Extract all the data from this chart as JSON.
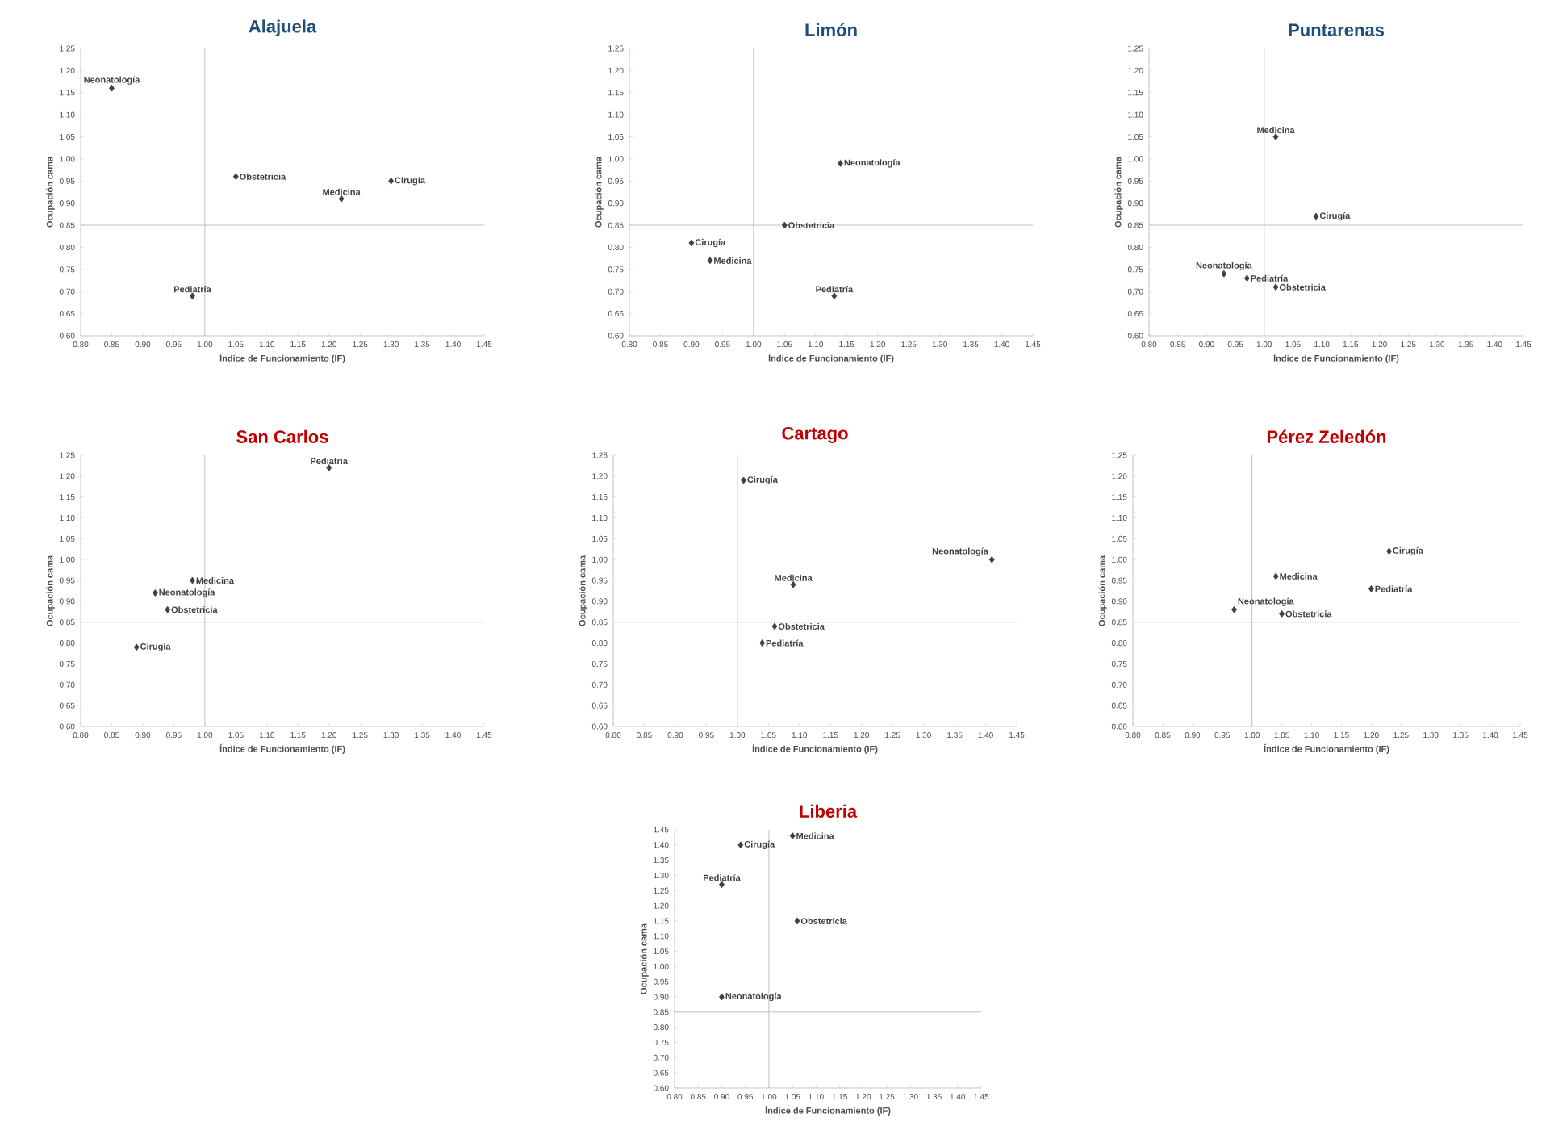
{
  "chart_data": [
    {
      "type": "scatter",
      "title": "Alajuela",
      "xlabel": "Índice de Funcionamiento (IF)",
      "ylabel": "Ocupación cama",
      "marker": "diamond",
      "xlim": [
        0.8,
        1.45
      ],
      "ylim": [
        0.6,
        1.25
      ],
      "xticks": [
        {
          "value": 0.8,
          "label": "0.80"
        },
        {
          "value": 0.85,
          "label": "0.85"
        },
        {
          "value": 0.9,
          "label": "0.90"
        },
        {
          "value": 0.95,
          "label": "0.95"
        },
        {
          "value": 1,
          "label": "1.00"
        },
        {
          "value": 1.05,
          "label": "1.05"
        },
        {
          "value": 1.1,
          "label": "1.10"
        },
        {
          "value": 1.15,
          "label": "1.15"
        },
        {
          "value": 1.2,
          "label": "1.20"
        },
        {
          "value": 1.25,
          "label": "1.25"
        },
        {
          "value": 1.3,
          "label": "1.30"
        },
        {
          "value": 1.35,
          "label": "1.35"
        },
        {
          "value": 1.4,
          "label": "1.40"
        },
        {
          "value": 1.45,
          "label": "1.45"
        }
      ],
      "yticks": [
        {
          "value": 0.6,
          "label": "0.60"
        },
        {
          "value": 0.65,
          "label": "0.65"
        },
        {
          "value": 0.7,
          "label": "0.70"
        },
        {
          "value": 0.75,
          "label": "0.75"
        },
        {
          "value": 0.8,
          "label": "0.80"
        },
        {
          "value": 0.85,
          "label": "0.85"
        },
        {
          "value": 0.9,
          "label": "0.90"
        },
        {
          "value": 0.95,
          "label": "0.95"
        },
        {
          "value": 1,
          "label": "1.00"
        },
        {
          "value": 1.05,
          "label": "1.05"
        },
        {
          "value": 1.1,
          "label": "1.10"
        },
        {
          "value": 1.15,
          "label": "1.15"
        },
        {
          "value": 1.2,
          "label": "1.20"
        },
        {
          "value": 1.25,
          "label": "1.25"
        }
      ],
      "ref_lines": [
        {
          "axis": "x",
          "value": 1,
          "color": "#bfbfbf"
        },
        {
          "axis": "y",
          "value": 0.85,
          "color": "#bfbfbf"
        }
      ],
      "series": [
        {
          "name": "Neonatología",
          "color": "#404040",
          "x": [
            0.85
          ],
          "values": [
            1.16
          ]
        },
        {
          "name": "Obstetricia",
          "color": "#404040",
          "x": [
            1.05
          ],
          "values": [
            0.96
          ]
        },
        {
          "name": "Medicina",
          "color": "#404040",
          "x": [
            1.22
          ],
          "values": [
            0.91
          ]
        },
        {
          "name": "Cirugía",
          "color": "#404040",
          "x": [
            1.3
          ],
          "values": [
            0.95
          ]
        },
        {
          "name": "Pediatría",
          "color": "#404040",
          "x": [
            0.98
          ],
          "values": [
            0.69
          ]
        }
      ]
    },
    {
      "type": "scatter",
      "title": "Limón",
      "xlabel": "Índice de Funcionamiento (IF)",
      "ylabel": "Ocupación cama",
      "marker": "diamond",
      "xlim": [
        0.8,
        1.45
      ],
      "ylim": [
        0.6,
        1.25
      ],
      "xticks": [
        {
          "value": 0.8,
          "label": "0.80"
        },
        {
          "value": 0.85,
          "label": "0.85"
        },
        {
          "value": 0.9,
          "label": "0.90"
        },
        {
          "value": 0.95,
          "label": "0.95"
        },
        {
          "value": 1,
          "label": "1.00"
        },
        {
          "value": 1.05,
          "label": "1.05"
        },
        {
          "value": 1.1,
          "label": "1.10"
        },
        {
          "value": 1.15,
          "label": "1.15"
        },
        {
          "value": 1.2,
          "label": "1.20"
        },
        {
          "value": 1.25,
          "label": "1.25"
        },
        {
          "value": 1.3,
          "label": "1.30"
        },
        {
          "value": 1.35,
          "label": "1.35"
        },
        {
          "value": 1.4,
          "label": "1.40"
        },
        {
          "value": 1.45,
          "label": "1.45"
        }
      ],
      "yticks": [
        {
          "value": 0.6,
          "label": "0.60"
        },
        {
          "value": 0.65,
          "label": "0.65"
        },
        {
          "value": 0.7,
          "label": "0.70"
        },
        {
          "value": 0.75,
          "label": "0.75"
        },
        {
          "value": 0.8,
          "label": "0.80"
        },
        {
          "value": 0.85,
          "label": "0.85"
        },
        {
          "value": 0.9,
          "label": "0.90"
        },
        {
          "value": 0.95,
          "label": "0.95"
        },
        {
          "value": 1,
          "label": "1.00"
        },
        {
          "value": 1.05,
          "label": "1.05"
        },
        {
          "value": 1.1,
          "label": "1.10"
        },
        {
          "value": 1.15,
          "label": "1.15"
        },
        {
          "value": 1.2,
          "label": "1.20"
        },
        {
          "value": 1.25,
          "label": "1.25"
        }
      ],
      "ref_lines": [
        {
          "axis": "x",
          "value": 1,
          "color": "#bfbfbf"
        },
        {
          "axis": "y",
          "value": 0.85,
          "color": "#bfbfbf"
        }
      ],
      "series": [
        {
          "name": "Neonatología",
          "color": "#404040",
          "x": [
            1.14
          ],
          "values": [
            0.99
          ]
        },
        {
          "name": "Obstetricia",
          "color": "#404040",
          "x": [
            1.05
          ],
          "values": [
            0.85
          ]
        },
        {
          "name": "Cirugía",
          "color": "#404040",
          "x": [
            0.9
          ],
          "values": [
            0.81
          ]
        },
        {
          "name": "Medicina",
          "color": "#404040",
          "x": [
            0.93
          ],
          "values": [
            0.77
          ]
        },
        {
          "name": "Pediatría",
          "color": "#404040",
          "x": [
            1.13
          ],
          "values": [
            0.69
          ]
        }
      ]
    },
    {
      "type": "scatter",
      "title": "Puntarenas",
      "xlabel": "Índice de Funcionamiento (IF)",
      "ylabel": "Ocupación cama",
      "marker": "diamond",
      "xlim": [
        0.8,
        1.45
      ],
      "ylim": [
        0.6,
        1.25
      ],
      "xticks": [
        {
          "value": 0.8,
          "label": "0.80"
        },
        {
          "value": 0.85,
          "label": "0.85"
        },
        {
          "value": 0.9,
          "label": "0.90"
        },
        {
          "value": 0.95,
          "label": "0.95"
        },
        {
          "value": 1,
          "label": "1.00"
        },
        {
          "value": 1.05,
          "label": "1.05"
        },
        {
          "value": 1.1,
          "label": "1.10"
        },
        {
          "value": 1.15,
          "label": "1.15"
        },
        {
          "value": 1.2,
          "label": "1.20"
        },
        {
          "value": 1.25,
          "label": "1.25"
        },
        {
          "value": 1.3,
          "label": "1.30"
        },
        {
          "value": 1.35,
          "label": "1.35"
        },
        {
          "value": 1.4,
          "label": "1.40"
        },
        {
          "value": 1.45,
          "label": "1.45"
        }
      ],
      "yticks": [
        {
          "value": 0.6,
          "label": "0.60"
        },
        {
          "value": 0.65,
          "label": "0.65"
        },
        {
          "value": 0.7,
          "label": "0.70"
        },
        {
          "value": 0.75,
          "label": "0.75"
        },
        {
          "value": 0.8,
          "label": "0.80"
        },
        {
          "value": 0.85,
          "label": "0.85"
        },
        {
          "value": 0.9,
          "label": "0.90"
        },
        {
          "value": 0.95,
          "label": "0.95"
        },
        {
          "value": 1,
          "label": "1.00"
        },
        {
          "value": 1.05,
          "label": "1.05"
        },
        {
          "value": 1.1,
          "label": "1.10"
        },
        {
          "value": 1.15,
          "label": "1.15"
        },
        {
          "value": 1.2,
          "label": "1.20"
        },
        {
          "value": 1.25,
          "label": "1.25"
        }
      ],
      "ref_lines": [
        {
          "axis": "x",
          "value": 1,
          "color": "#bfbfbf"
        },
        {
          "axis": "y",
          "value": 0.85,
          "color": "#bfbfbf"
        }
      ],
      "series": [
        {
          "name": "Medicina",
          "color": "#404040",
          "x": [
            1.02
          ],
          "values": [
            1.05
          ]
        },
        {
          "name": "Cirugía",
          "color": "#404040",
          "x": [
            1.09
          ],
          "values": [
            0.87
          ]
        },
        {
          "name": "Neonatología",
          "color": "#404040",
          "x": [
            0.93
          ],
          "values": [
            0.74
          ]
        },
        {
          "name": "Pediatría",
          "color": "#404040",
          "x": [
            0.97
          ],
          "values": [
            0.73
          ]
        },
        {
          "name": "Obstetricia",
          "color": "#404040",
          "x": [
            1.02
          ],
          "values": [
            0.71
          ]
        }
      ]
    },
    {
      "type": "scatter",
      "title": "San Carlos",
      "xlabel": "Índice de Funcionamiento (IF)",
      "ylabel": "Ocupación cama",
      "marker": "diamond",
      "xlim": [
        0.8,
        1.45
      ],
      "ylim": [
        0.6,
        1.25
      ],
      "xticks": [
        {
          "value": 0.8,
          "label": "0.80"
        },
        {
          "value": 0.85,
          "label": "0.85"
        },
        {
          "value": 0.9,
          "label": "0.90"
        },
        {
          "value": 0.95,
          "label": "0.95"
        },
        {
          "value": 1,
          "label": "1.00"
        },
        {
          "value": 1.05,
          "label": "1.05"
        },
        {
          "value": 1.1,
          "label": "1.10"
        },
        {
          "value": 1.15,
          "label": "1.15"
        },
        {
          "value": 1.2,
          "label": "1.20"
        },
        {
          "value": 1.25,
          "label": "1.25"
        },
        {
          "value": 1.3,
          "label": "1.30"
        },
        {
          "value": 1.35,
          "label": "1.35"
        },
        {
          "value": 1.4,
          "label": "1.40"
        },
        {
          "value": 1.45,
          "label": "1.45"
        }
      ],
      "yticks": [
        {
          "value": 0.6,
          "label": "0.60"
        },
        {
          "value": 0.65,
          "label": "0.65"
        },
        {
          "value": 0.7,
          "label": "0.70"
        },
        {
          "value": 0.75,
          "label": "0.75"
        },
        {
          "value": 0.8,
          "label": "0.80"
        },
        {
          "value": 0.85,
          "label": "0.85"
        },
        {
          "value": 0.9,
          "label": "0.90"
        },
        {
          "value": 0.95,
          "label": "0.95"
        },
        {
          "value": 1,
          "label": "1.00"
        },
        {
          "value": 1.05,
          "label": "1.05"
        },
        {
          "value": 1.1,
          "label": "1.10"
        },
        {
          "value": 1.15,
          "label": "1.15"
        },
        {
          "value": 1.2,
          "label": "1.20"
        },
        {
          "value": 1.25,
          "label": "1.25"
        }
      ],
      "ref_lines": [
        {
          "axis": "x",
          "value": 1,
          "color": "#bfbfbf"
        },
        {
          "axis": "y",
          "value": 0.85,
          "color": "#bfbfbf"
        }
      ],
      "series": [
        {
          "name": "Pediatría",
          "color": "#404040",
          "x": [
            1.2
          ],
          "values": [
            1.22
          ]
        },
        {
          "name": "Medicina",
          "color": "#404040",
          "x": [
            0.98
          ],
          "values": [
            0.95
          ]
        },
        {
          "name": "Neonatología",
          "color": "#404040",
          "x": [
            0.92
          ],
          "values": [
            0.92
          ]
        },
        {
          "name": "Obstetricia",
          "color": "#404040",
          "x": [
            0.94
          ],
          "values": [
            0.88
          ]
        },
        {
          "name": "Cirugía",
          "color": "#404040",
          "x": [
            0.89
          ],
          "values": [
            0.79
          ]
        }
      ]
    },
    {
      "type": "scatter",
      "title": "Cartago",
      "xlabel": "Índice de Funcionamiento (IF)",
      "ylabel": "Ocupación cama",
      "marker": "diamond",
      "xlim": [
        0.8,
        1.45
      ],
      "ylim": [
        0.6,
        1.25
      ],
      "xticks": [
        {
          "value": 0.8,
          "label": "0.80"
        },
        {
          "value": 0.85,
          "label": "0.85"
        },
        {
          "value": 0.9,
          "label": "0.90"
        },
        {
          "value": 0.95,
          "label": "0.95"
        },
        {
          "value": 1,
          "label": "1.00"
        },
        {
          "value": 1.05,
          "label": "1.05"
        },
        {
          "value": 1.1,
          "label": "1.10"
        },
        {
          "value": 1.15,
          "label": "1.15"
        },
        {
          "value": 1.2,
          "label": "1.20"
        },
        {
          "value": 1.25,
          "label": "1.25"
        },
        {
          "value": 1.3,
          "label": "1.30"
        },
        {
          "value": 1.35,
          "label": "1.35"
        },
        {
          "value": 1.4,
          "label": "1.40"
        },
        {
          "value": 1.45,
          "label": "1.45"
        }
      ],
      "yticks": [
        {
          "value": 0.6,
          "label": "0.60"
        },
        {
          "value": 0.65,
          "label": "0.65"
        },
        {
          "value": 0.7,
          "label": "0.70"
        },
        {
          "value": 0.75,
          "label": "0.75"
        },
        {
          "value": 0.8,
          "label": "0.80"
        },
        {
          "value": 0.85,
          "label": "0.85"
        },
        {
          "value": 0.9,
          "label": "0.90"
        },
        {
          "value": 0.95,
          "label": "0.95"
        },
        {
          "value": 1,
          "label": "1.00"
        },
        {
          "value": 1.05,
          "label": "1.05"
        },
        {
          "value": 1.1,
          "label": "1.10"
        },
        {
          "value": 1.15,
          "label": "1.15"
        },
        {
          "value": 1.2,
          "label": "1.20"
        },
        {
          "value": 1.25,
          "label": "1.25"
        }
      ],
      "ref_lines": [
        {
          "axis": "x",
          "value": 1,
          "color": "#bfbfbf"
        },
        {
          "axis": "y",
          "value": 0.85,
          "color": "#bfbfbf"
        }
      ],
      "series": [
        {
          "name": "Cirugía",
          "color": "#404040",
          "x": [
            1.01
          ],
          "values": [
            1.19
          ]
        },
        {
          "name": "Neonatología",
          "color": "#404040",
          "x": [
            1.41
          ],
          "values": [
            1.0
          ]
        },
        {
          "name": "Medicina",
          "color": "#404040",
          "x": [
            1.09
          ],
          "values": [
            0.94
          ]
        },
        {
          "name": "Obstetricia",
          "color": "#404040",
          "x": [
            1.06
          ],
          "values": [
            0.84
          ]
        },
        {
          "name": "Pediatría",
          "color": "#404040",
          "x": [
            1.04
          ],
          "values": [
            0.8
          ]
        }
      ]
    },
    {
      "type": "scatter",
      "title": "Pérez Zeledón",
      "xlabel": "Índice de Funcionamiento (IF)",
      "ylabel": "Ocupación cama",
      "marker": "diamond",
      "xlim": [
        0.8,
        1.45
      ],
      "ylim": [
        0.6,
        1.25
      ],
      "xticks": [
        {
          "value": 0.8,
          "label": "0.80"
        },
        {
          "value": 0.85,
          "label": "0.85"
        },
        {
          "value": 0.9,
          "label": "0.90"
        },
        {
          "value": 0.95,
          "label": "0.95"
        },
        {
          "value": 1,
          "label": "1.00"
        },
        {
          "value": 1.05,
          "label": "1.05"
        },
        {
          "value": 1.1,
          "label": "1.10"
        },
        {
          "value": 1.15,
          "label": "1.15"
        },
        {
          "value": 1.2,
          "label": "1.20"
        },
        {
          "value": 1.25,
          "label": "1.25"
        },
        {
          "value": 1.3,
          "label": "1.30"
        },
        {
          "value": 1.35,
          "label": "1.35"
        },
        {
          "value": 1.4,
          "label": "1.40"
        },
        {
          "value": 1.45,
          "label": "1.45"
        }
      ],
      "yticks": [
        {
          "value": 0.6,
          "label": "0.60"
        },
        {
          "value": 0.65,
          "label": "0.65"
        },
        {
          "value": 0.7,
          "label": "0.70"
        },
        {
          "value": 0.75,
          "label": "0.75"
        },
        {
          "value": 0.8,
          "label": "0.80"
        },
        {
          "value": 0.85,
          "label": "0.85"
        },
        {
          "value": 0.9,
          "label": "0.90"
        },
        {
          "value": 0.95,
          "label": "0.95"
        },
        {
          "value": 1,
          "label": "1.00"
        },
        {
          "value": 1.05,
          "label": "1.05"
        },
        {
          "value": 1.1,
          "label": "1.10"
        },
        {
          "value": 1.15,
          "label": "1.15"
        },
        {
          "value": 1.2,
          "label": "1.20"
        },
        {
          "value": 1.25,
          "label": "1.25"
        }
      ],
      "ref_lines": [
        {
          "axis": "x",
          "value": 1,
          "color": "#bfbfbf"
        },
        {
          "axis": "y",
          "value": 0.85,
          "color": "#bfbfbf"
        }
      ],
      "series": [
        {
          "name": "Cirugía",
          "color": "#404040",
          "x": [
            1.23
          ],
          "values": [
            1.02
          ]
        },
        {
          "name": "Pediatría",
          "color": "#404040",
          "x": [
            1.2
          ],
          "values": [
            0.93
          ]
        },
        {
          "name": "Medicina",
          "color": "#404040",
          "x": [
            1.04
          ],
          "values": [
            0.96
          ]
        },
        {
          "name": "Neonatología",
          "color": "#404040",
          "x": [
            0.97
          ],
          "values": [
            0.88
          ]
        },
        {
          "name": "Obstetricia",
          "color": "#404040",
          "x": [
            1.05
          ],
          "values": [
            0.87
          ]
        }
      ]
    },
    {
      "type": "scatter",
      "title": "Liberia",
      "xlabel": "Índice de Funcionamiento (IF)",
      "ylabel": "Ocupación cama",
      "marker": "diamond",
      "xlim": [
        0.8,
        1.45
      ],
      "ylim": [
        0.6,
        1.45
      ],
      "xticks": [
        {
          "value": 0.8,
          "label": "0.80"
        },
        {
          "value": 0.85,
          "label": "0.85"
        },
        {
          "value": 0.9,
          "label": "0.90"
        },
        {
          "value": 0.95,
          "label": "0.95"
        },
        {
          "value": 1,
          "label": "1.00"
        },
        {
          "value": 1.05,
          "label": "1.05"
        },
        {
          "value": 1.1,
          "label": "1.10"
        },
        {
          "value": 1.15,
          "label": "1.15"
        },
        {
          "value": 1.2,
          "label": "1.20"
        },
        {
          "value": 1.25,
          "label": "1.25"
        },
        {
          "value": 1.3,
          "label": "1.30"
        },
        {
          "value": 1.35,
          "label": "1.35"
        },
        {
          "value": 1.4,
          "label": "1.40"
        },
        {
          "value": 1.45,
          "label": "1.45"
        }
      ],
      "yticks": [
        {
          "value": 0.6,
          "label": "0.60"
        },
        {
          "value": 0.65,
          "label": "0.65"
        },
        {
          "value": 0.7,
          "label": "0.70"
        },
        {
          "value": 0.75,
          "label": "0.75"
        },
        {
          "value": 0.8,
          "label": "0.80"
        },
        {
          "value": 0.85,
          "label": "0.85"
        },
        {
          "value": 0.9,
          "label": "0.90"
        },
        {
          "value": 0.95,
          "label": "0.95"
        },
        {
          "value": 1,
          "label": "1.00"
        },
        {
          "value": 1.05,
          "label": "1.05"
        },
        {
          "value": 1.1,
          "label": "1.10"
        },
        {
          "value": 1.15,
          "label": "1.15"
        },
        {
          "value": 1.2,
          "label": "1.20"
        },
        {
          "value": 1.25,
          "label": "1.25"
        },
        {
          "value": 1.3,
          "label": "1.30"
        },
        {
          "value": 1.35,
          "label": "1.35"
        },
        {
          "value": 1.4,
          "label": "1.40"
        },
        {
          "value": 1.45,
          "label": "1.45"
        }
      ],
      "ref_lines": [
        {
          "axis": "x",
          "value": 1,
          "color": "#bfbfbf"
        },
        {
          "axis": "y",
          "value": 0.85,
          "color": "#bfbfbf"
        }
      ],
      "series": [
        {
          "name": "Medicina",
          "color": "#404040",
          "x": [
            1.05
          ],
          "values": [
            1.43
          ]
        },
        {
          "name": "Cirugía",
          "color": "#404040",
          "x": [
            0.94
          ],
          "values": [
            1.4
          ]
        },
        {
          "name": "Pediatría",
          "color": "#404040",
          "x": [
            0.9
          ],
          "values": [
            1.27
          ]
        },
        {
          "name": "Obstetricia",
          "color": "#404040",
          "x": [
            1.06
          ],
          "values": [
            1.15
          ]
        },
        {
          "name": "Neonatología",
          "color": "#404040",
          "x": [
            0.9
          ],
          "values": [
            0.9
          ]
        }
      ]
    }
  ]
}
